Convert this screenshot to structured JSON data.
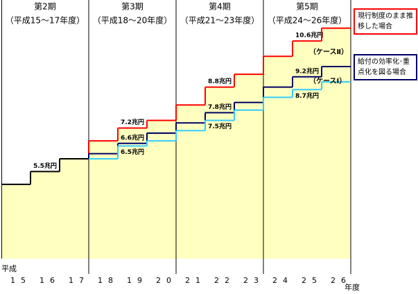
{
  "chart_data": {
    "type": "step",
    "categories": [
      "15",
      "16",
      "17",
      "18",
      "19",
      "20",
      "21",
      "22",
      "23",
      "24",
      "25",
      "26"
    ],
    "x_prefix": "平成",
    "x_unit": "年度",
    "periods": [
      {
        "title": "第2期",
        "range": "（平成15～17年度）"
      },
      {
        "title": "第3期",
        "range": "（平成18～20年度）"
      },
      {
        "title": "第4期",
        "range": "（平成21～23年度）"
      },
      {
        "title": "第5期",
        "range": "（平成24～26年度）"
      }
    ],
    "ylim": [
      2.1,
      12.2
    ],
    "fill_color": "#ffffc0",
    "series": [
      {
        "color": "#000000",
        "values": [
          5.0,
          5.5,
          6.0,
          null,
          null,
          null,
          null,
          null,
          null,
          null,
          null,
          null
        ],
        "value_labels": [
          null,
          "5.5兆円",
          null,
          null,
          null,
          null,
          null,
          null,
          null,
          null,
          null,
          null
        ]
      },
      {
        "name": "現行制度のまま推移した場合",
        "color": "#ff0000",
        "values": [
          null,
          null,
          null,
          6.7,
          7.2,
          7.5,
          8.1,
          8.8,
          9.3,
          10.0,
          10.6,
          11.1
        ],
        "value_labels": [
          null,
          null,
          null,
          null,
          "7.2兆円",
          null,
          null,
          "8.8兆円",
          null,
          null,
          "10.6兆円",
          null
        ]
      },
      {
        "name": "給付の効率化･重点化を図る場合",
        "color": "#000066",
        "values": [
          null,
          null,
          null,
          6.2,
          6.6,
          7.0,
          7.4,
          7.8,
          8.2,
          8.8,
          9.2,
          9.6
        ],
        "value_labels": [
          null,
          null,
          null,
          null,
          "6.6兆円",
          null,
          null,
          "7.8兆円",
          null,
          null,
          "9.2兆円",
          null
        ]
      },
      {
        "color": "#33ccff",
        "values": [
          null,
          null,
          null,
          6.0,
          6.5,
          6.7,
          7.1,
          7.5,
          7.9,
          8.4,
          8.7,
          9.0
        ],
        "value_labels": [
          null,
          null,
          null,
          null,
          "6.5兆円",
          null,
          null,
          "7.5兆円",
          null,
          null,
          "8.7兆円",
          null
        ]
      }
    ],
    "annotations": [
      "（ケースⅡ）",
      "（ケースⅠ）"
    ]
  }
}
